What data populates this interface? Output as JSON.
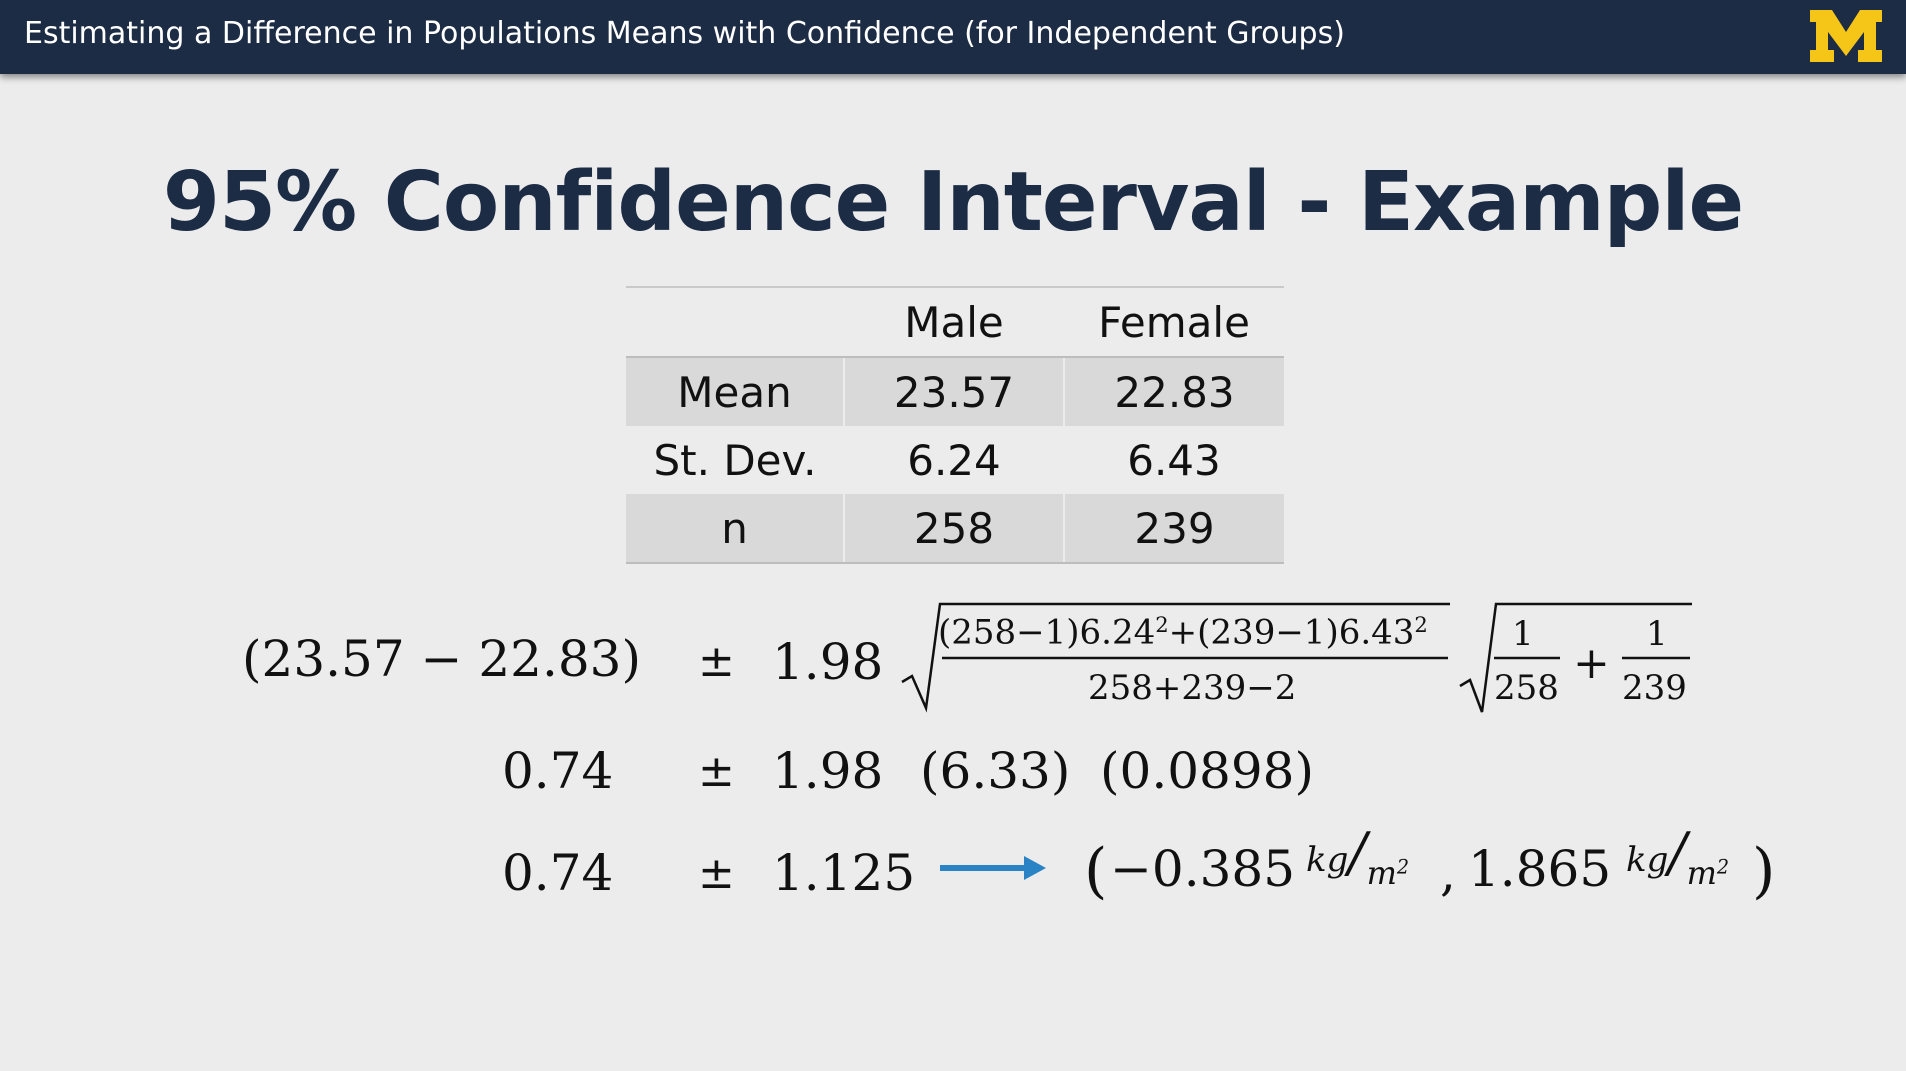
{
  "header": {
    "title": "Estimating a Difference in Populations Means with Confidence (for Independent Groups)",
    "logo_letter": "M",
    "colors": {
      "bar": "#1d2c45",
      "logo": "#f5c518"
    }
  },
  "slide": {
    "title": "95% Confidence Interval - Example"
  },
  "table": {
    "columns": [
      "",
      "Male",
      "Female"
    ],
    "rows": [
      {
        "label": "Mean",
        "male": "23.57",
        "female": "22.83"
      },
      {
        "label": "St. Dev.",
        "male": "6.24",
        "female": "6.43"
      },
      {
        "label": "n",
        "male": "258",
        "female": "239"
      }
    ]
  },
  "formula": {
    "line1": {
      "diff": "(23.57 − 22.83)",
      "pm": "±",
      "t": "1.98",
      "num_a": "(258−1)6.24",
      "num_b": "+(239−1)6.43",
      "sq": "2",
      "den": "258+239−2",
      "one": "1",
      "n1": "258",
      "plus": "+",
      "n2": "239"
    },
    "line2": {
      "diff": "0.74",
      "pm": "±",
      "t": "1.98",
      "sp": "(6.33)",
      "se": "(0.0898)"
    },
    "line3": {
      "diff": "0.74",
      "pm": "±",
      "moe": "1.125",
      "open": "(",
      "lower": "−0.385",
      "comma": ",",
      "upper": "1.865",
      "close": ")",
      "unit_num": "kg",
      "unit_den": "m",
      "unit_pow": "2",
      "slash": "/",
      "arrow_color": "#2a83c4"
    }
  }
}
